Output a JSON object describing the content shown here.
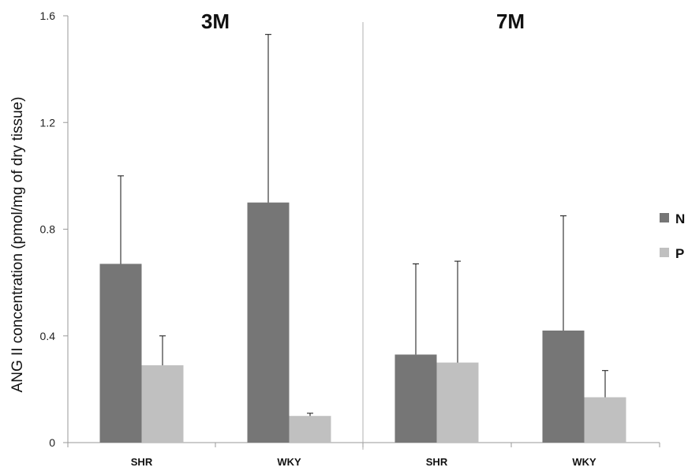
{
  "chart_data": {
    "type": "bar",
    "ylabel": "ANG II concentration (pmol/mg of dry tissue)",
    "ylim": [
      0,
      1.6
    ],
    "yticks": [
      "0",
      "0.4",
      "0.8",
      "1.2",
      "1.6"
    ],
    "grid": false,
    "legend_position": "right",
    "legend": [
      "N",
      "P"
    ],
    "colors": {
      "N": "#767676",
      "P": "#c0c0c0"
    },
    "panels": [
      {
        "title": "3M",
        "categories": [
          "SHR",
          "WKY"
        ],
        "series": [
          {
            "name": "N",
            "values": [
              0.67,
              0.9
            ],
            "error_upper": [
              1.0,
              1.53
            ]
          },
          {
            "name": "P",
            "values": [
              0.29,
              0.1
            ],
            "error_upper": [
              0.4,
              0.11
            ]
          }
        ]
      },
      {
        "title": "7M",
        "categories": [
          "SHR",
          "WKY"
        ],
        "series": [
          {
            "name": "N",
            "values": [
              0.33,
              0.42
            ],
            "error_upper": [
              0.67,
              0.85
            ]
          },
          {
            "name": "P",
            "values": [
              0.3,
              0.17
            ],
            "error_upper": [
              0.68,
              0.27
            ]
          }
        ]
      }
    ]
  }
}
